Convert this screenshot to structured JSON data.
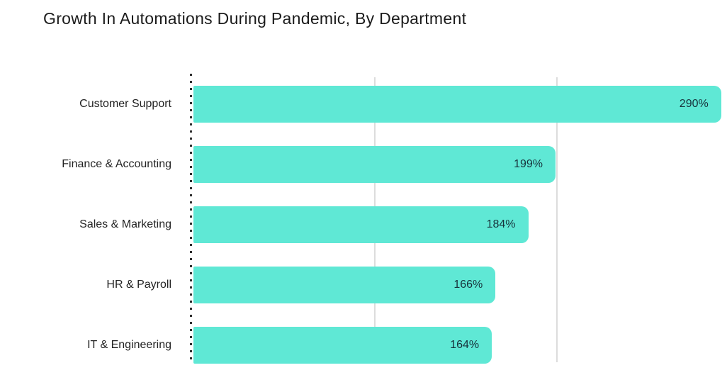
{
  "chart_data": {
    "type": "bar",
    "orientation": "horizontal",
    "title": "Growth In Automations During Pandemic, By Department",
    "categories": [
      "Customer Support",
      "Finance & Accounting",
      "Sales & Marketing",
      "HR & Payroll",
      "IT & Engineering"
    ],
    "values": [
      290,
      199,
      184,
      166,
      164
    ],
    "value_labels": [
      "290%",
      "199%",
      "184%",
      "166%",
      "164%"
    ],
    "xlabel": "",
    "ylabel": "",
    "xlim": [
      0,
      294
    ],
    "gridlines_x": [
      100,
      200
    ],
    "grid": "vertical-light-gray, dotted zero baseline",
    "legend": "none",
    "bar_color": "#5FE8D5",
    "gridline_color": "#DCDCDC",
    "axis_dot_color": "#2E2E2E",
    "title_color": "#1B1B1B",
    "category_label_color": "#222222",
    "value_label_color": "#17323B",
    "background_color": "#FFFFFF"
  }
}
